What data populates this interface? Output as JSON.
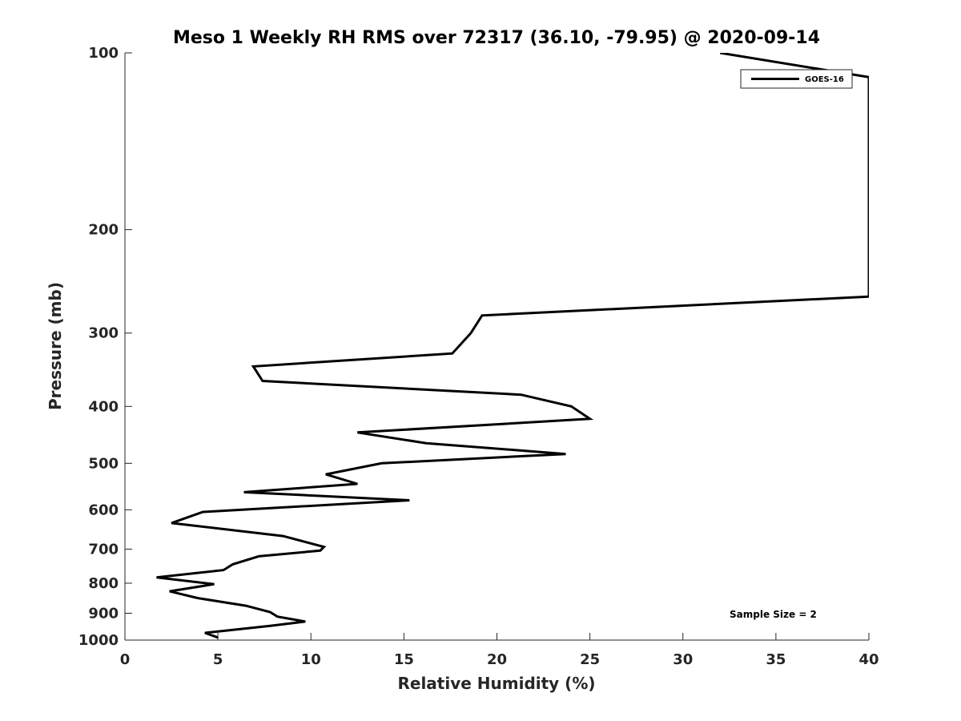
{
  "chart_data": {
    "type": "line",
    "title": "Meso 1 Weekly RH RMS over 72317 (36.10, -79.95) @ 2020-09-14",
    "xlabel": "Relative Humidity (%)",
    "ylabel": "Pressure (mb)",
    "xlim": [
      0,
      40
    ],
    "ylim": [
      100,
      1000
    ],
    "y_scale": "log",
    "y_reversed": true,
    "grid": false,
    "legend_position": "top-right",
    "x_ticks": [
      "0",
      "5",
      "10",
      "15",
      "20",
      "25",
      "30",
      "35",
      "40"
    ],
    "y_ticks": [
      "100",
      "200",
      "300",
      "400",
      "500",
      "600",
      "700",
      "800",
      "900",
      "1000"
    ],
    "series": [
      {
        "name": "GOES-16",
        "color": "#000000",
        "points": [
          [
            32.0,
            100
          ],
          [
            40.0,
            110
          ],
          [
            40.0,
            260
          ],
          [
            19.2,
            280
          ],
          [
            18.6,
            300
          ],
          [
            17.6,
            325
          ],
          [
            6.9,
            342
          ],
          [
            7.4,
            362
          ],
          [
            21.3,
            382
          ],
          [
            24.0,
            400
          ],
          [
            25.0,
            420
          ],
          [
            12.5,
            443
          ],
          [
            16.2,
            462
          ],
          [
            23.7,
            482
          ],
          [
            13.8,
            500
          ],
          [
            10.8,
            522
          ],
          [
            12.5,
            542
          ],
          [
            6.4,
            560
          ],
          [
            15.3,
            578
          ],
          [
            4.2,
            605
          ],
          [
            2.5,
            632
          ],
          [
            8.5,
            665
          ],
          [
            10.7,
            694
          ],
          [
            10.5,
            704
          ],
          [
            7.2,
            720
          ],
          [
            5.8,
            743
          ],
          [
            5.3,
            760
          ],
          [
            1.7,
            782
          ],
          [
            4.8,
            803
          ],
          [
            2.4,
            826
          ],
          [
            3.9,
            848
          ],
          [
            6.5,
            874
          ],
          [
            7.8,
            896
          ],
          [
            8.2,
            912
          ],
          [
            9.7,
            930
          ],
          [
            7.8,
            946
          ],
          [
            4.3,
            972
          ],
          [
            5.0,
            990
          ]
        ]
      }
    ],
    "annotations": [
      "Sample Size = 2"
    ]
  }
}
